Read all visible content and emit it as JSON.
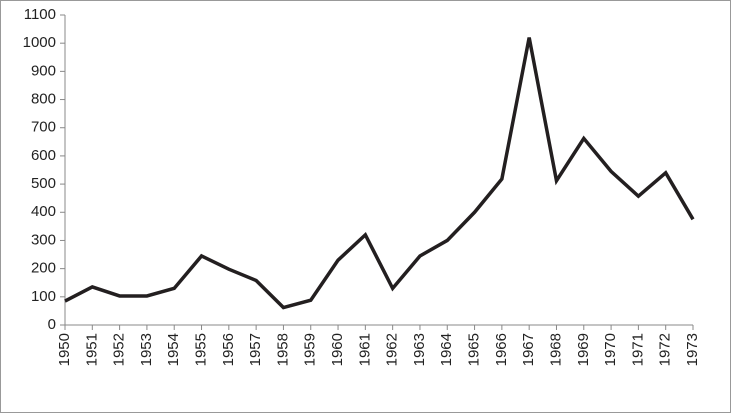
{
  "chart_data": {
    "type": "line",
    "categories": [
      "1950",
      "1951",
      "1952",
      "1953",
      "1954",
      "1955",
      "1956",
      "1957",
      "1958",
      "1959",
      "1960",
      "1961",
      "1962",
      "1963",
      "1964",
      "1965",
      "1966",
      "1967",
      "1968",
      "1969",
      "1970",
      "1971",
      "1972",
      "1973"
    ],
    "values": [
      85,
      135,
      103,
      103,
      130,
      245,
      198,
      158,
      62,
      88,
      230,
      320,
      130,
      245,
      300,
      400,
      518,
      1020,
      512,
      662,
      545,
      457,
      540,
      375
    ],
    "color": "#231f20",
    "ylim": [
      0,
      1100
    ],
    "yticks": [
      0,
      100,
      200,
      300,
      400,
      500,
      600,
      700,
      800,
      900,
      1000,
      1100
    ],
    "grid": false
  }
}
